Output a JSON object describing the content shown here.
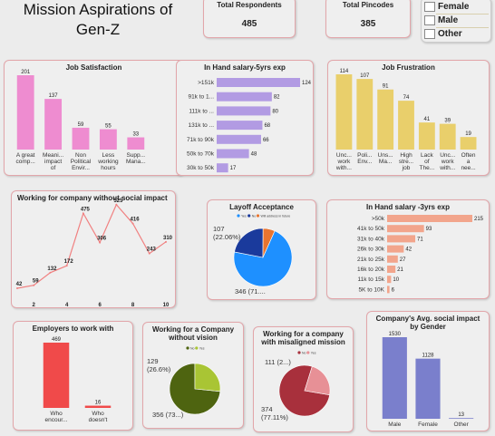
{
  "dashboard": {
    "title_line1": "Mission Aspirations of",
    "title_line2": "Gen-Z"
  },
  "kpis": {
    "respondents_label": "Total Respondents",
    "respondents_value": "485",
    "pincodes_label": "Total Pincodes",
    "pincodes_value": "385"
  },
  "gender_slicer": {
    "options": [
      "Female",
      "Male",
      "Other"
    ]
  },
  "colors": {
    "pink": "#ee8cd0",
    "purple": "#b29be3",
    "yellow": "#e9cf6b",
    "line": "#f08080",
    "salmon": "#f2a58c",
    "red": "#f04a4a",
    "blue_pie": "#1e90ff",
    "navy_pie": "#1a3a9c",
    "orange_pie": "#e8742f",
    "olive_dark": "#4e6410",
    "olive_light": "#a9c534",
    "maroon": "#a8303c",
    "rose": "#e79096",
    "indigo": "#7a7fcc",
    "card_border": "#e2a6aa"
  },
  "chart_data": [
    {
      "id": "job_satisfaction",
      "type": "bar",
      "title": "Job Satisfaction",
      "categories": [
        "A great comp...",
        "Meani... impact of the...",
        "Non Political Envir...",
        "Less working hours",
        "Supp... Mana..."
      ],
      "values": [
        201,
        137,
        59,
        55,
        33
      ]
    },
    {
      "id": "salary_5yrs",
      "type": "bar",
      "orientation": "horizontal",
      "title": "In Hand salary-5yrs exp",
      "categories": [
        ">151k",
        "91k to 1...",
        "111k to ...",
        "131k to ...",
        "71k to 90k",
        "50k to 70k",
        "30k to 50k"
      ],
      "values": [
        124,
        82,
        80,
        68,
        66,
        48,
        17
      ]
    },
    {
      "id": "job_frustration",
      "type": "bar",
      "title": "Job Frustration",
      "categories": [
        "Unc... work with...",
        "Poli... Env...",
        "Uns... Ma...",
        "High stre... job",
        "Lack of The...",
        "Unc... work with...",
        "Often a nee..."
      ],
      "values": [
        114,
        107,
        91,
        74,
        41,
        39,
        19
      ]
    },
    {
      "id": "no_social_impact",
      "type": "line",
      "title": "Working for company without social impact",
      "x": [
        1,
        2,
        3,
        4,
        5,
        6,
        7,
        8,
        9,
        10
      ],
      "values": [
        42,
        59,
        132,
        172,
        475,
        306,
        525,
        416,
        243,
        310
      ],
      "xticks": [
        2,
        4,
        6,
        8,
        10
      ]
    },
    {
      "id": "layoff_acceptance",
      "type": "pie",
      "title": "Layoff Acceptance",
      "legend": [
        "Yes",
        "No",
        "Will address in future"
      ],
      "values": [
        346,
        107,
        32
      ],
      "slice_labels": [
        "346 (71....",
        "107 (22.06%)",
        ""
      ]
    },
    {
      "id": "salary_3yrs",
      "type": "bar",
      "orientation": "horizontal",
      "title": "In Hand salary -3yrs exp",
      "categories": [
        ">50k",
        "41k to 50k",
        "31k to 40k",
        "26k to 30k",
        "21k to 25k",
        "16k to 20k",
        "11k to 15k",
        "5K to 10K"
      ],
      "values": [
        215,
        93,
        71,
        42,
        27,
        21,
        10,
        6
      ]
    },
    {
      "id": "employers",
      "type": "bar",
      "title": "Employers to work with",
      "categories": [
        "Who encour...",
        "Who doesn't support"
      ],
      "values": [
        469,
        16
      ]
    },
    {
      "id": "without_vision",
      "type": "pie",
      "title": "Working for a Company without vision",
      "legend": [
        "No",
        "Yes"
      ],
      "values": [
        356,
        129
      ],
      "slice_labels": [
        "356 (73...)",
        "129 (26.6%)"
      ]
    },
    {
      "id": "misaligned_mission",
      "type": "pie",
      "title": "Working for a company with misaligned mission",
      "legend": [
        "No",
        "Yes"
      ],
      "values": [
        374,
        111
      ],
      "slice_labels": [
        "374 (77.11%)",
        "111 (2...)"
      ]
    },
    {
      "id": "social_impact_gender",
      "type": "bar",
      "title": "Company's Avg. social impact by Gender",
      "categories": [
        "Male",
        "Female",
        "Other"
      ],
      "values": [
        1530,
        1128,
        13
      ]
    }
  ]
}
